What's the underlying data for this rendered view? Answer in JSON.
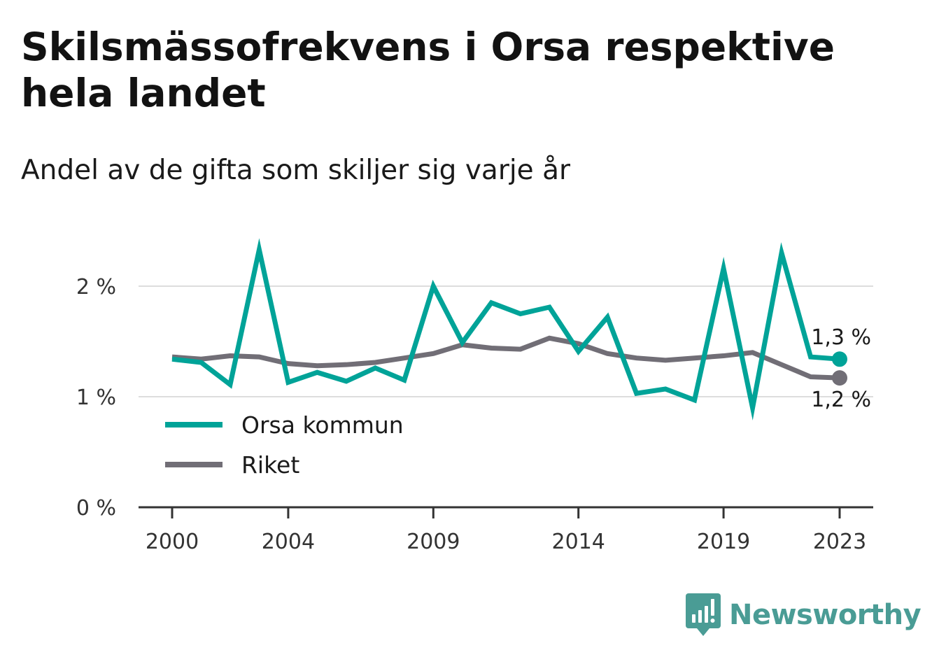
{
  "header": {
    "title": "Skilsmässofrekvens i Orsa respektive hela landet",
    "subtitle": "Andel av de gifta som skiljer sig varje år"
  },
  "brand": {
    "name": "Newsworthy",
    "icon": "newsworthy-logo-icon",
    "color": "#4a9c95"
  },
  "chart_data": {
    "type": "line",
    "x": [
      2000,
      2001,
      2002,
      2003,
      2004,
      2005,
      2006,
      2007,
      2008,
      2009,
      2010,
      2011,
      2012,
      2013,
      2014,
      2015,
      2016,
      2017,
      2018,
      2019,
      2020,
      2021,
      2022,
      2023
    ],
    "x_ticks": [
      2000,
      2004,
      2009,
      2014,
      2019,
      2023
    ],
    "x_tick_labels": [
      "2000",
      "2004",
      "2009",
      "2014",
      "2019",
      "2023"
    ],
    "y_ticks": [
      0,
      1,
      2
    ],
    "y_tick_labels": [
      "0 %",
      "1 %",
      "2 %"
    ],
    "ylim": [
      0,
      2.5
    ],
    "grid": "horizontal",
    "legend_position": "bottom-left",
    "series": [
      {
        "name": "Orsa kommun",
        "color": "#00a398",
        "end_label": "1,3 %",
        "values": [
          1.34,
          1.31,
          1.11,
          2.33,
          1.13,
          1.22,
          1.14,
          1.26,
          1.15,
          2.0,
          1.49,
          1.85,
          1.75,
          1.81,
          1.41,
          1.72,
          1.03,
          1.07,
          0.97,
          2.16,
          0.9,
          2.3,
          1.36,
          1.34
        ]
      },
      {
        "name": "Riket",
        "color": "#716e76",
        "end_label": "1,2 %",
        "values": [
          1.36,
          1.34,
          1.37,
          1.36,
          1.3,
          1.28,
          1.29,
          1.31,
          1.35,
          1.39,
          1.47,
          1.44,
          1.43,
          1.53,
          1.48,
          1.39,
          1.35,
          1.33,
          1.35,
          1.37,
          1.4,
          1.29,
          1.18,
          1.17
        ]
      }
    ]
  }
}
